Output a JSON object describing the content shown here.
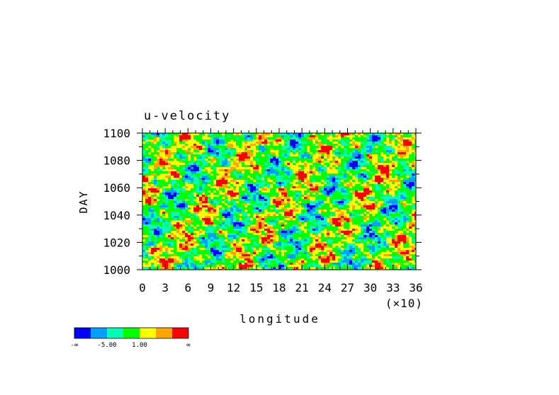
{
  "chart_data": {
    "type": "heatmap",
    "title": "u-velocity",
    "xlabel": "longitude",
    "ylabel": "DAY",
    "x_multiplier_label": "(×10)",
    "xlim": [
      0,
      36
    ],
    "ylim": [
      1000,
      1100
    ],
    "x_ticks": [
      "0",
      "3",
      "6",
      "9",
      "12",
      "15",
      "18",
      "21",
      "24",
      "27",
      "30",
      "33",
      "36"
    ],
    "y_ticks": [
      "1000",
      "1020",
      "1040",
      "1060",
      "1080",
      "1100"
    ],
    "colorbar": {
      "colors": [
        "#0000ff",
        "#00a0ff",
        "#00ffb4",
        "#00ff00",
        "#ffff00",
        "#ffa500",
        "#ff0000"
      ],
      "labels": [
        "-∞",
        "-5.00",
        "1.00",
        "∞"
      ]
    }
  }
}
